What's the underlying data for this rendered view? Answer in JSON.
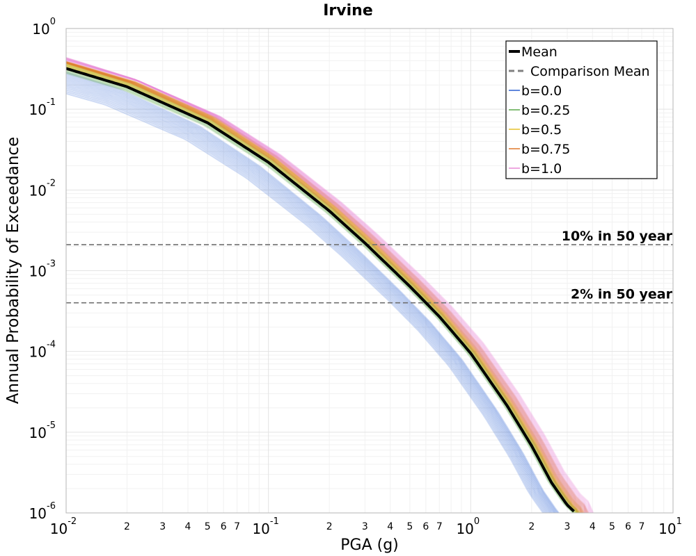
{
  "chart_data": {
    "type": "line",
    "title": "Irvine",
    "xlabel": "PGA (g)",
    "ylabel": "Annual Probability of Exceedance",
    "x_scale": "log",
    "y_scale": "log",
    "xlim": [
      0.01,
      10
    ],
    "ylim": [
      1e-06,
      1
    ],
    "grid": true,
    "legend_position": "top-right",
    "x_major_ticks": [
      {
        "value": 0.01,
        "base": "10",
        "exp": "-2"
      },
      {
        "value": 0.1,
        "base": "10",
        "exp": "-1"
      },
      {
        "value": 1,
        "base": "10",
        "exp": "0"
      },
      {
        "value": 10,
        "base": "10",
        "exp": "1"
      }
    ],
    "x_minor_tick_labels": [
      "2",
      "3",
      "4",
      "5",
      "6",
      "7"
    ],
    "y_major_ticks": [
      {
        "value": 1,
        "base": "10",
        "exp": "0"
      },
      {
        "value": 0.1,
        "base": "10",
        "exp": "-1"
      },
      {
        "value": 0.01,
        "base": "10",
        "exp": "-2"
      },
      {
        "value": 0.001,
        "base": "10",
        "exp": "-3"
      },
      {
        "value": 0.0001,
        "base": "10",
        "exp": "-4"
      },
      {
        "value": 1e-05,
        "base": "10",
        "exp": "-5"
      },
      {
        "value": 1e-06,
        "base": "10",
        "exp": "-6"
      }
    ],
    "mean": {
      "name": "Mean",
      "color": "#000000",
      "x": [
        0.01,
        0.02,
        0.05,
        0.1,
        0.2,
        0.3,
        0.5,
        0.7,
        1.0,
        1.5,
        2.0,
        2.5,
        3.0,
        3.3
      ],
      "y": [
        0.32,
        0.19,
        0.068,
        0.022,
        0.0055,
        0.0022,
        0.00064,
        0.00027,
        9.5e-05,
        2.2e-05,
        6.8e-06,
        2.4e-06,
        1.25e-06,
        1e-06
      ]
    },
    "band_series": [
      {
        "name": "b=0.0",
        "color": "#2a5fd0",
        "factor": 0.72
      },
      {
        "name": "b=0.25",
        "color": "#5aa94a",
        "factor": 1.08
      },
      {
        "name": "b=0.5",
        "color": "#e6c12a",
        "factor": 1.18
      },
      {
        "name": "b=0.75",
        "color": "#e0792a",
        "factor": 1.3
      },
      {
        "name": "b=1.0",
        "color": "#e88ad6",
        "factor": 1.45
      }
    ],
    "comparison_mean": {
      "name": "Comparison Mean",
      "color": "#808080"
    },
    "reference_lines": [
      {
        "label": "10% in 50 year",
        "y": 0.0021
      },
      {
        "label": "2% in 50 year",
        "y": 0.0004
      }
    ]
  }
}
